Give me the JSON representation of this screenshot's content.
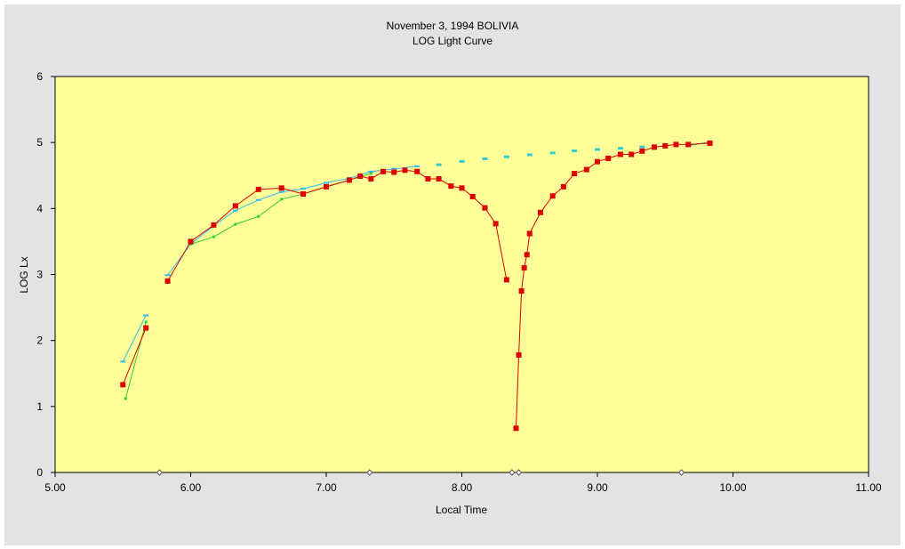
{
  "chart_data": {
    "type": "line",
    "title": "November 3, 1994 BOLIVIA",
    "subtitle": "LOG Light Curve",
    "xlabel": "Local Time",
    "ylabel": "LOG Lx",
    "xlim": [
      5.0,
      11.0
    ],
    "ylim": [
      0,
      6
    ],
    "x_ticks": [
      "5.00",
      "6.00",
      "7.00",
      "8.00",
      "9.00",
      "10.00",
      "11.00"
    ],
    "y_ticks": [
      "0",
      "1",
      "2",
      "3",
      "4",
      "5",
      "6"
    ],
    "grid": false,
    "legend": "none",
    "colors": {
      "plot_background": "#ffff99",
      "frame_background": "#e3e3e3",
      "series_red": "#dd0000",
      "series_cyan": "#33bbee",
      "series_green": "#33cc33",
      "series_dashed": "#33cccc",
      "markers_axis": "#555555"
    },
    "series": [
      {
        "style": "red-square-line",
        "segments": [
          {
            "x": [
              5.5,
              5.67
            ],
            "y": [
              1.33,
              2.19
            ]
          },
          {
            "x": [
              5.83,
              6.0,
              6.17,
              6.33,
              6.5,
              6.67,
              6.83,
              7.0,
              7.17,
              7.25,
              7.33,
              7.42,
              7.5,
              7.58,
              7.67,
              7.75,
              7.83,
              7.92,
              8.0,
              8.08,
              8.17,
              8.25,
              8.33
            ],
            "y": [
              2.9,
              3.5,
              3.75,
              4.04,
              4.29,
              4.31,
              4.22,
              4.33,
              4.43,
              4.49,
              4.45,
              4.56,
              4.55,
              4.58,
              4.56,
              4.45,
              4.45,
              4.34,
              4.31,
              4.18,
              4.01,
              3.77,
              2.92
            ]
          },
          {
            "x": [
              8.4,
              8.42,
              8.44,
              8.46,
              8.48,
              8.5,
              8.58,
              8.67,
              8.75,
              8.83,
              8.92,
              9.0,
              9.08,
              9.17,
              9.25,
              9.33,
              9.42,
              9.5,
              9.58,
              9.67,
              9.83
            ],
            "y": [
              0.67,
              1.78,
              2.75,
              3.1,
              3.3,
              3.62,
              3.94,
              4.19,
              4.33,
              4.53,
              4.59,
              4.71,
              4.76,
              4.82,
              4.82,
              4.87,
              4.93,
              4.95,
              4.97,
              4.97,
              4.99
            ]
          }
        ]
      },
      {
        "style": "cyan-line",
        "segments": [
          {
            "x": [
              5.5,
              5.67
            ],
            "y": [
              1.68,
              2.38
            ]
          },
          {
            "x": [
              5.83,
              6.0,
              6.17,
              6.33,
              6.5,
              6.67,
              6.83,
              7.0,
              7.17,
              7.33,
              7.5,
              7.67
            ],
            "y": [
              2.99,
              3.46,
              3.74,
              3.97,
              4.13,
              4.25,
              4.3,
              4.39,
              4.46,
              4.56,
              4.6,
              4.64
            ]
          },
          {
            "x": [
              9.67,
              9.83
            ],
            "y": [
              4.95,
              5.01
            ]
          }
        ]
      },
      {
        "style": "green-line",
        "segments": [
          {
            "x": [
              5.52,
              5.67
            ],
            "y": [
              1.12,
              2.28
            ]
          },
          {
            "x": [
              6.0,
              6.17,
              6.33,
              6.5,
              6.67,
              6.83,
              7.0,
              7.17,
              7.33
            ],
            "y": [
              3.46,
              3.57,
              3.76,
              3.88,
              4.14,
              4.22,
              4.33,
              4.43,
              4.53
            ]
          },
          {
            "x": [
              9.67,
              9.83
            ],
            "y": [
              4.96,
              5.0
            ]
          }
        ]
      },
      {
        "style": "cyan-dashes",
        "segments": [
          {
            "x": [
              7.83,
              8.0,
              8.17,
              8.33,
              8.5,
              8.67,
              8.83,
              9.0,
              9.17,
              9.33,
              9.5,
              9.67,
              9.83
            ],
            "y": [
              4.67,
              4.72,
              4.76,
              4.79,
              4.82,
              4.85,
              4.88,
              4.9,
              4.92,
              4.94,
              4.96,
              4.98,
              5.0
            ]
          }
        ]
      }
    ],
    "axis_markers_x": [
      5.77,
      7.32,
      8.37,
      8.42,
      9.62
    ]
  }
}
